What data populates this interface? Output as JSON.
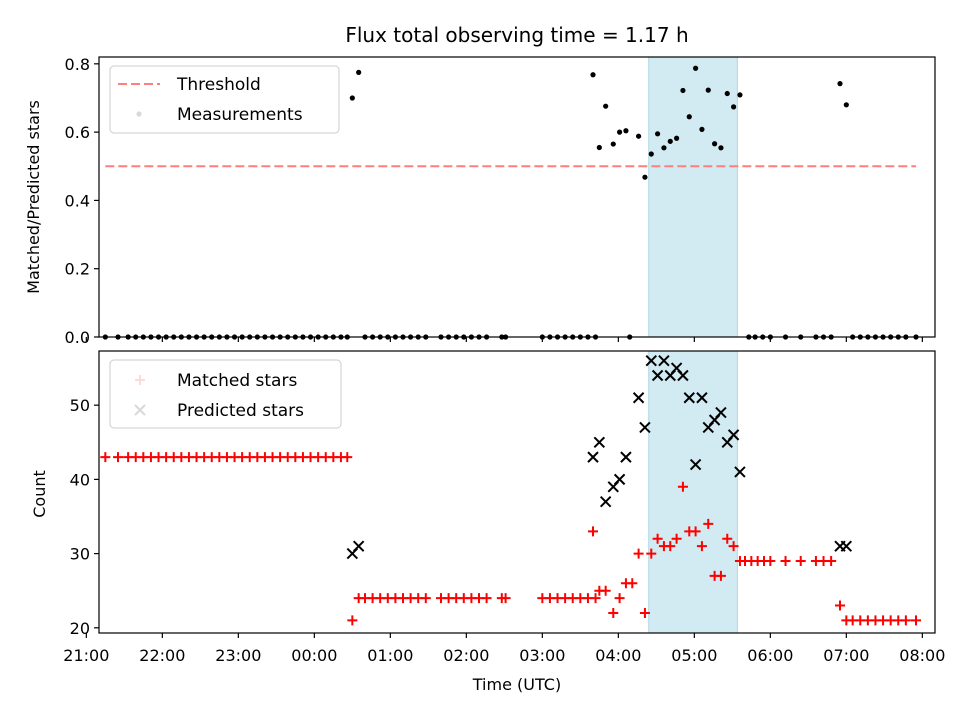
{
  "chart_data": [
    {
      "type": "scatter",
      "title": "Flux total observing time = 1.17 h",
      "ylabel": "Matched/Predicted stars",
      "xlabel": "",
      "ylim": [
        0,
        0.82
      ],
      "yticks": [
        "0.0",
        "0.2",
        "0.4",
        "0.6",
        "0.8"
      ],
      "grid": false,
      "legend_position": "upper-left",
      "threshold": {
        "name": "Threshold",
        "value": 0.5,
        "x_range": [
          "21:15",
          "07:55"
        ],
        "color": "#ff7f7f"
      },
      "shaded_interval": {
        "start": "04:24",
        "end": "05:34",
        "color": "#add8e6"
      },
      "series": [
        {
          "name": "Measurements",
          "color": "#000000",
          "marker": "dot",
          "points": [
            [
              "21:15",
              0
            ],
            [
              "21:25",
              0
            ],
            [
              "21:33",
              0
            ],
            [
              "21:39",
              0
            ],
            [
              "21:45",
              0
            ],
            [
              "21:51",
              0
            ],
            [
              "21:57",
              0
            ],
            [
              "22:03",
              0
            ],
            [
              "22:09",
              0
            ],
            [
              "22:15",
              0
            ],
            [
              "22:21",
              0
            ],
            [
              "22:27",
              0
            ],
            [
              "22:33",
              0
            ],
            [
              "22:39",
              0
            ],
            [
              "22:45",
              0
            ],
            [
              "22:51",
              0
            ],
            [
              "22:57",
              0
            ],
            [
              "23:03",
              0
            ],
            [
              "23:09",
              0
            ],
            [
              "23:15",
              0
            ],
            [
              "23:21",
              0
            ],
            [
              "23:27",
              0
            ],
            [
              "23:33",
              0
            ],
            [
              "23:39",
              0
            ],
            [
              "23:45",
              0
            ],
            [
              "23:51",
              0
            ],
            [
              "23:57",
              0
            ],
            [
              "00:03",
              0
            ],
            [
              "00:09",
              0
            ],
            [
              "00:15",
              0
            ],
            [
              "00:21",
              0
            ],
            [
              "00:26",
              0
            ],
            [
              "00:30",
              0.7
            ],
            [
              "00:35",
              0.775
            ],
            [
              "00:40",
              0
            ],
            [
              "00:46",
              0
            ],
            [
              "00:52",
              0
            ],
            [
              "00:58",
              0
            ],
            [
              "01:04",
              0
            ],
            [
              "01:10",
              0
            ],
            [
              "01:16",
              0
            ],
            [
              "01:22",
              0
            ],
            [
              "01:28",
              0
            ],
            [
              "01:40",
              0
            ],
            [
              "01:46",
              0
            ],
            [
              "01:52",
              0
            ],
            [
              "01:58",
              0
            ],
            [
              "02:04",
              0
            ],
            [
              "02:10",
              0
            ],
            [
              "02:16",
              0
            ],
            [
              "02:28",
              0
            ],
            [
              "02:31",
              0
            ],
            [
              "03:00",
              0
            ],
            [
              "03:06",
              0
            ],
            [
              "03:12",
              0
            ],
            [
              "03:18",
              0
            ],
            [
              "03:24",
              0
            ],
            [
              "03:30",
              0
            ],
            [
              "03:36",
              0
            ],
            [
              "03:42",
              0
            ],
            [
              "03:40",
              0.768
            ],
            [
              "03:45",
              0.555
            ],
            [
              "03:50",
              0.676
            ],
            [
              "03:56",
              0.565
            ],
            [
              "04:01",
              0.6
            ],
            [
              "04:06",
              0.604
            ],
            [
              "04:09",
              0
            ],
            [
              "04:16",
              0.588
            ],
            [
              "04:21",
              0.468
            ],
            [
              "04:26",
              0.536
            ],
            [
              "04:31",
              0.595
            ],
            [
              "04:36",
              0.554
            ],
            [
              "04:41",
              0.573
            ],
            [
              "04:46",
              0.582
            ],
            [
              "04:51",
              0.722
            ],
            [
              "04:56",
              0.645
            ],
            [
              "05:01",
              0.787
            ],
            [
              "05:06",
              0.608
            ],
            [
              "05:11",
              0.723
            ],
            [
              "05:16",
              0.566
            ],
            [
              "05:21",
              0.554
            ],
            [
              "05:26",
              0.713
            ],
            [
              "05:31",
              0.674
            ],
            [
              "05:36",
              0.709
            ],
            [
              "05:43",
              0
            ],
            [
              "05:48",
              0
            ],
            [
              "05:54",
              0
            ],
            [
              "06:00",
              0
            ],
            [
              "06:12",
              0
            ],
            [
              "06:24",
              0
            ],
            [
              "06:36",
              0
            ],
            [
              "06:42",
              0
            ],
            [
              "06:48",
              0
            ],
            [
              "06:55",
              0.742
            ],
            [
              "07:00",
              0.68
            ],
            [
              "07:05",
              0
            ],
            [
              "07:11",
              0
            ],
            [
              "07:17",
              0
            ],
            [
              "07:23",
              0
            ],
            [
              "07:29",
              0
            ],
            [
              "07:35",
              0
            ],
            [
              "07:41",
              0
            ],
            [
              "07:47",
              0
            ],
            [
              "07:55",
              0
            ]
          ]
        }
      ]
    },
    {
      "type": "scatter",
      "title": "",
      "xlabel": "Time (UTC)",
      "ylabel": "Count",
      "ylim": [
        19.3,
        57.3
      ],
      "yticks": [
        "20",
        "30",
        "40",
        "50"
      ],
      "xticks": [
        "21:00",
        "22:00",
        "23:00",
        "00:00",
        "01:00",
        "02:00",
        "03:00",
        "04:00",
        "05:00",
        "06:00",
        "07:00",
        "08:00"
      ],
      "grid": false,
      "legend_position": "upper-left",
      "shaded_interval": {
        "start": "04:24",
        "end": "05:34",
        "color": "#add8e6"
      },
      "series": [
        {
          "name": "Matched stars",
          "color": "#ff0000",
          "marker": "plus",
          "points": [
            [
              "21:15",
              43
            ],
            [
              "21:25",
              43
            ],
            [
              "21:33",
              43
            ],
            [
              "21:39",
              43
            ],
            [
              "21:45",
              43
            ],
            [
              "21:51",
              43
            ],
            [
              "21:57",
              43
            ],
            [
              "22:03",
              43
            ],
            [
              "22:09",
              43
            ],
            [
              "22:15",
              43
            ],
            [
              "22:21",
              43
            ],
            [
              "22:27",
              43
            ],
            [
              "22:33",
              43
            ],
            [
              "22:39",
              43
            ],
            [
              "22:45",
              43
            ],
            [
              "22:51",
              43
            ],
            [
              "22:57",
              43
            ],
            [
              "23:03",
              43
            ],
            [
              "23:09",
              43
            ],
            [
              "23:15",
              43
            ],
            [
              "23:21",
              43
            ],
            [
              "23:27",
              43
            ],
            [
              "23:33",
              43
            ],
            [
              "23:39",
              43
            ],
            [
              "23:45",
              43
            ],
            [
              "23:51",
              43
            ],
            [
              "23:57",
              43
            ],
            [
              "00:03",
              43
            ],
            [
              "00:09",
              43
            ],
            [
              "00:15",
              43
            ],
            [
              "00:21",
              43
            ],
            [
              "00:26",
              43
            ],
            [
              "00:30",
              21
            ],
            [
              "00:35",
              24
            ],
            [
              "00:40",
              24
            ],
            [
              "00:46",
              24
            ],
            [
              "00:52",
              24
            ],
            [
              "00:58",
              24
            ],
            [
              "01:04",
              24
            ],
            [
              "01:10",
              24
            ],
            [
              "01:16",
              24
            ],
            [
              "01:22",
              24
            ],
            [
              "01:28",
              24
            ],
            [
              "01:40",
              24
            ],
            [
              "01:46",
              24
            ],
            [
              "01:52",
              24
            ],
            [
              "01:58",
              24
            ],
            [
              "02:04",
              24
            ],
            [
              "02:10",
              24
            ],
            [
              "02:16",
              24
            ],
            [
              "02:28",
              24
            ],
            [
              "02:31",
              24
            ],
            [
              "03:00",
              24
            ],
            [
              "03:06",
              24
            ],
            [
              "03:12",
              24
            ],
            [
              "03:18",
              24
            ],
            [
              "03:24",
              24
            ],
            [
              "03:30",
              24
            ],
            [
              "03:36",
              24
            ],
            [
              "03:42",
              24
            ],
            [
              "03:40",
              33
            ],
            [
              "03:45",
              25
            ],
            [
              "03:50",
              25
            ],
            [
              "03:56",
              22
            ],
            [
              "04:01",
              24
            ],
            [
              "04:06",
              26
            ],
            [
              "04:11",
              26
            ],
            [
              "04:16",
              30
            ],
            [
              "04:21",
              22
            ],
            [
              "04:26",
              30
            ],
            [
              "04:31",
              32
            ],
            [
              "04:36",
              31
            ],
            [
              "04:41",
              31
            ],
            [
              "04:46",
              32
            ],
            [
              "04:51",
              39
            ],
            [
              "04:56",
              33
            ],
            [
              "05:01",
              33
            ],
            [
              "05:06",
              31
            ],
            [
              "05:11",
              34
            ],
            [
              "05:16",
              27
            ],
            [
              "05:21",
              27
            ],
            [
              "05:26",
              32
            ],
            [
              "05:31",
              31
            ],
            [
              "05:36",
              29
            ],
            [
              "05:40",
              29
            ],
            [
              "05:45",
              29
            ],
            [
              "05:50",
              29
            ],
            [
              "05:55",
              29
            ],
            [
              "06:00",
              29
            ],
            [
              "06:12",
              29
            ],
            [
              "06:24",
              29
            ],
            [
              "06:36",
              29
            ],
            [
              "06:42",
              29
            ],
            [
              "06:48",
              29
            ],
            [
              "06:55",
              23
            ],
            [
              "07:00",
              21
            ],
            [
              "07:05",
              21
            ],
            [
              "07:11",
              21
            ],
            [
              "07:17",
              21
            ],
            [
              "07:23",
              21
            ],
            [
              "07:29",
              21
            ],
            [
              "07:35",
              21
            ],
            [
              "07:41",
              21
            ],
            [
              "07:47",
              21
            ],
            [
              "07:55",
              21
            ]
          ]
        },
        {
          "name": "Predicted stars",
          "color": "#000000",
          "marker": "cross",
          "points": [
            [
              "00:30",
              30
            ],
            [
              "00:35",
              31
            ],
            [
              "03:40",
              43
            ],
            [
              "03:45",
              45
            ],
            [
              "03:50",
              37
            ],
            [
              "03:56",
              39
            ],
            [
              "04:01",
              40
            ],
            [
              "04:06",
              43
            ],
            [
              "04:16",
              51
            ],
            [
              "04:21",
              47
            ],
            [
              "04:26",
              56
            ],
            [
              "04:31",
              54
            ],
            [
              "04:36",
              56
            ],
            [
              "04:41",
              54
            ],
            [
              "04:46",
              55
            ],
            [
              "04:51",
              54
            ],
            [
              "04:56",
              51
            ],
            [
              "05:01",
              42
            ],
            [
              "05:06",
              51
            ],
            [
              "05:11",
              47
            ],
            [
              "05:16",
              48
            ],
            [
              "05:21",
              49
            ],
            [
              "05:26",
              45
            ],
            [
              "05:31",
              46
            ],
            [
              "05:36",
              41
            ],
            [
              "06:55",
              31
            ],
            [
              "07:00",
              31
            ]
          ]
        }
      ]
    }
  ]
}
